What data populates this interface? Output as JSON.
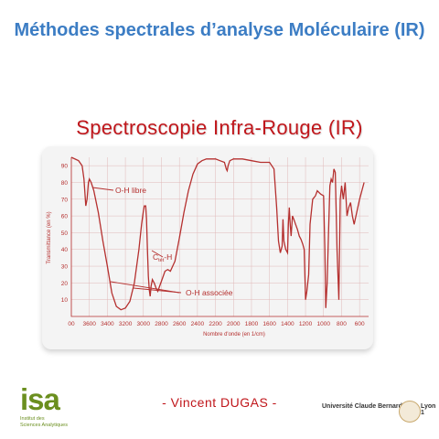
{
  "header": {
    "title": "Méthodes spectrales d’analyse Moléculaire (IR)",
    "subtitle": "Spectroscopie Infra-Rouge (IR)"
  },
  "spectrum": {
    "ylabel": "Transmittance (en %)",
    "xlabel": "Nombre d'onde (en 1/cm)",
    "annotations": {
      "oh_libre": "O-H libre",
      "oh_associee": "O-H associée",
      "ctet_main": "C",
      "ctet_sub": "tét",
      "ctet_tail": "-H"
    },
    "curve_color": "#b5302f"
  },
  "chart_data": {
    "type": "line",
    "xlabel": "Nombre d'onde (en 1/cm)",
    "ylabel": "Transmittance (en %)",
    "x_ticks": [
      "00",
      "3600",
      "3400",
      "3200",
      "3000",
      "2800",
      "2600",
      "2400",
      "2200",
      "2000",
      "1800",
      "1600",
      "1400",
      "1200",
      "1000",
      "800",
      "600"
    ],
    "y_ticks": [
      "10",
      "20",
      "30",
      "40",
      "50",
      "60",
      "70",
      "80",
      "90"
    ],
    "xlim": [
      3800,
      500
    ],
    "ylim": [
      0,
      95
    ],
    "series": [
      {
        "x": [
          3800,
          3720,
          3680,
          3660,
          3640,
          3625,
          3610,
          3600,
          3580,
          3550,
          3500,
          3450,
          3400,
          3350,
          3300,
          3250,
          3200,
          3150,
          3100,
          3050,
          3020,
          3000,
          2990,
          2975,
          2965,
          2955,
          2945,
          2935,
          2925,
          2915,
          2900,
          2880,
          2860,
          2840,
          2800,
          2760,
          2730,
          2700,
          2650,
          2600,
          2550,
          2500,
          2450,
          2400,
          2350,
          2300,
          2200,
          2150,
          2100,
          2080,
          2070,
          2060,
          2040,
          2000,
          1950,
          1900,
          1800,
          1700,
          1600,
          1550,
          1520,
          1500,
          1480,
          1470,
          1460,
          1450,
          1440,
          1420,
          1400,
          1390,
          1380,
          1370,
          1360,
          1345,
          1330,
          1310,
          1290,
          1270,
          1250,
          1230,
          1215,
          1200,
          1185,
          1165,
          1150,
          1120,
          1090,
          1070,
          1050,
          1030,
          1000,
          985,
          975,
          960,
          945,
          930,
          915,
          900,
          885,
          870,
          850,
          830,
          815,
          800,
          780,
          760,
          740,
          720,
          700,
          680,
          660,
          640,
          620,
          600,
          550
        ],
        "values": [
          95,
          93,
          90,
          82,
          66,
          70,
          80,
          82,
          80,
          75,
          62,
          45,
          30,
          14,
          6,
          4,
          5,
          9,
          20,
          40,
          55,
          63,
          66,
          66,
          58,
          40,
          24,
          16,
          12,
          18,
          22,
          20,
          17,
          15,
          21,
          27,
          28,
          27,
          33,
          47,
          62,
          75,
          85,
          91,
          93,
          94,
          94,
          93,
          92,
          88,
          87,
          90,
          93,
          94,
          94,
          94,
          93,
          92,
          92,
          88,
          65,
          45,
          38,
          40,
          42,
          58,
          45,
          40,
          38,
          55,
          65,
          55,
          48,
          60,
          58,
          55,
          52,
          48,
          46,
          43,
          40,
          10,
          15,
          25,
          55,
          70,
          72,
          75,
          74,
          73,
          72,
          40,
          5,
          20,
          50,
          78,
          82,
          80,
          88,
          86,
          40,
          10,
          70,
          78,
          70,
          80,
          60,
          65,
          68,
          60,
          55,
          60,
          65,
          70,
          80
        ]
      }
    ],
    "grid": true
  },
  "footer": {
    "author": "- Vincent DUGAS -",
    "logo_text": "isa",
    "logo_sub_line1": "Institut des",
    "logo_sub_line2": "Sciences Analytiques",
    "university": "Université Claude Bernard",
    "university_city": "Lyon 1"
  }
}
